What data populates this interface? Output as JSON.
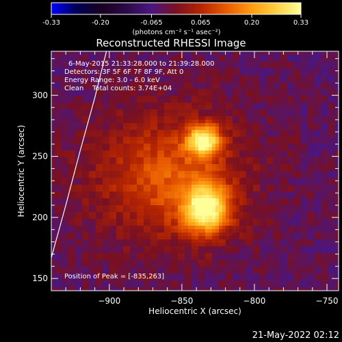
{
  "colors": {
    "background": "#000000",
    "foreground": "#ffffff",
    "colormap": [
      "#0000ff",
      "#000055",
      "#1a0022",
      "#2b0a45",
      "#4a1680",
      "#7a1020",
      "#b52500",
      "#e85a00",
      "#ff9a10",
      "#ffd040",
      "#ffff9a"
    ]
  },
  "colorbar": {
    "tick_labels": [
      "-0.33",
      "-0.20",
      "-0.065",
      "0.065",
      "0.20",
      "0.33"
    ],
    "tick_values": [
      -0.33,
      -0.2,
      -0.065,
      0.065,
      0.2,
      0.33
    ],
    "range": [
      -0.33,
      0.33
    ],
    "units": "(photons cm⁻² s⁻¹ asec⁻²)"
  },
  "chart_data": {
    "type": "heatmap",
    "title": "Reconstructed RHESSI Image",
    "xlabel": "Heliocentric X (arcsec)",
    "ylabel": "Heliocentric Y (arcsec)",
    "xlim": [
      -940,
      -742
    ],
    "ylim": [
      140,
      336
    ],
    "x_ticks": [
      -900,
      -850,
      -800,
      -750
    ],
    "x_tick_labels": [
      "−900",
      "−850",
      "−800",
      "−750"
    ],
    "y_ticks": [
      150,
      200,
      250,
      300
    ],
    "y_tick_labels": [
      "150",
      "200",
      "250",
      "300"
    ],
    "sources": [
      {
        "x": -835,
        "y": 263,
        "peak": 0.33,
        "sigma_x": 8,
        "sigma_y": 9
      },
      {
        "x": -833,
        "y": 207,
        "peak": 0.33,
        "sigma_x": 11,
        "sigma_y": 14
      },
      {
        "x": -860,
        "y": 232,
        "peak": 0.12,
        "sigma_x": 30,
        "sigma_y": 30
      }
    ],
    "limb": [
      [
        -940,
        167
      ],
      [
        -930,
        210
      ],
      [
        -920,
        255
      ],
      [
        -910,
        298
      ],
      [
        -902,
        336
      ]
    ],
    "grid": false
  },
  "info": {
    "time_range": "6-May-2015 21:33:28.000 to 21:39:28.000",
    "detectors": "Detectors: 3F 5F 6F 7F 8F 9F, Att 0",
    "energy": "Energy Range: 3.0 - 6.0 keV",
    "algorithm": "Clean    Total counts: 3.74E+04",
    "peak": "Position of Peak = [-835,263]"
  },
  "footer": "21-May-2022 02:12"
}
